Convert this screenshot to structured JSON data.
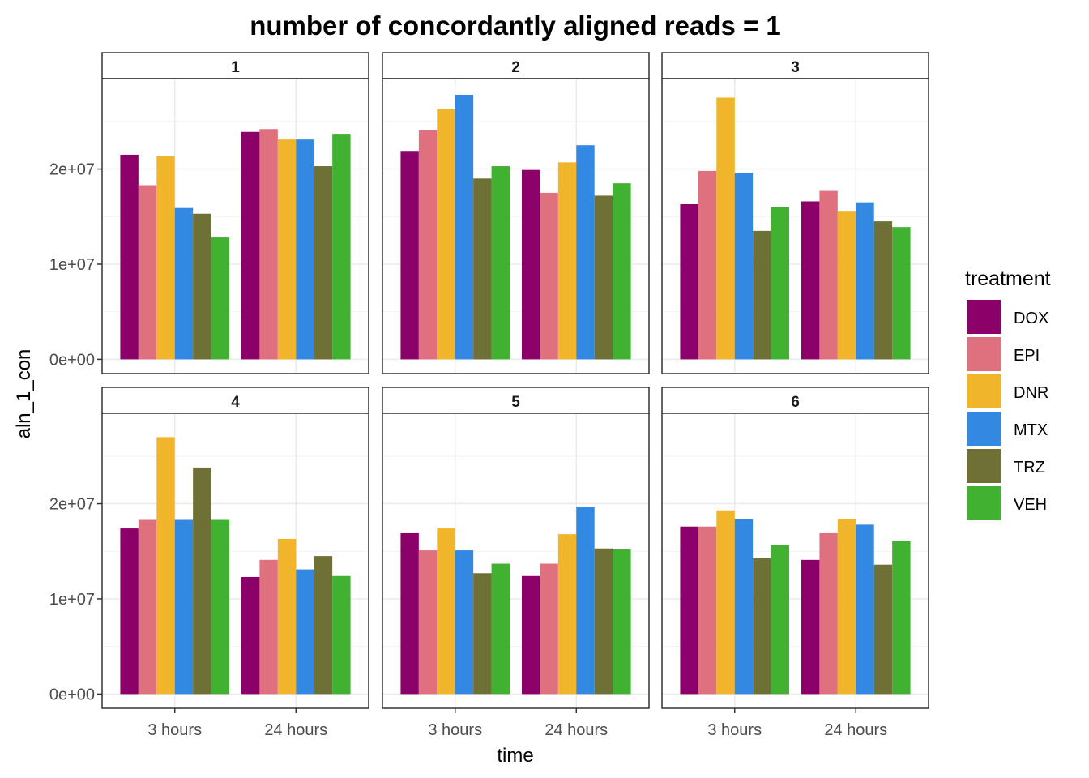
{
  "chart_data": {
    "type": "bar",
    "title": "number of concordantly aligned reads = 1",
    "xlabel": "time",
    "ylabel": "aln_1_con",
    "categories": [
      "3 hours",
      "24 hours"
    ],
    "ylim": [
      -1500000,
      29500000
    ],
    "yticks": [
      0,
      10000000,
      20000000
    ],
    "ytick_labels": [
      "0e+00",
      "1e+07",
      "2e+07"
    ],
    "grid": true,
    "legend": {
      "title": "treatment",
      "position": "right",
      "entries": [
        "DOX",
        "EPI",
        "DNR",
        "MTX",
        "TRZ",
        "VEH"
      ]
    },
    "series_colors": {
      "DOX": "#8b0069",
      "EPI": "#df717e",
      "DNR": "#f0b52b",
      "MTX": "#3388e2",
      "TRZ": "#6e7035",
      "VEH": "#41b131"
    },
    "facets": [
      {
        "label": "1",
        "series": [
          {
            "name": "DOX",
            "values": [
              21500000,
              23900000
            ]
          },
          {
            "name": "EPI",
            "values": [
              18300000,
              24200000
            ]
          },
          {
            "name": "DNR",
            "values": [
              21400000,
              23100000
            ]
          },
          {
            "name": "MTX",
            "values": [
              15900000,
              23100000
            ]
          },
          {
            "name": "TRZ",
            "values": [
              15300000,
              20300000
            ]
          },
          {
            "name": "VEH",
            "values": [
              12800000,
              23700000
            ]
          }
        ]
      },
      {
        "label": "2",
        "series": [
          {
            "name": "DOX",
            "values": [
              21900000,
              19900000
            ]
          },
          {
            "name": "EPI",
            "values": [
              24100000,
              17500000
            ]
          },
          {
            "name": "DNR",
            "values": [
              26300000,
              20700000
            ]
          },
          {
            "name": "MTX",
            "values": [
              27800000,
              22500000
            ]
          },
          {
            "name": "TRZ",
            "values": [
              19000000,
              17200000
            ]
          },
          {
            "name": "VEH",
            "values": [
              20300000,
              18500000
            ]
          }
        ]
      },
      {
        "label": "3",
        "series": [
          {
            "name": "DOX",
            "values": [
              16300000,
              16600000
            ]
          },
          {
            "name": "EPI",
            "values": [
              19800000,
              17700000
            ]
          },
          {
            "name": "DNR",
            "values": [
              27500000,
              15600000
            ]
          },
          {
            "name": "MTX",
            "values": [
              19600000,
              16500000
            ]
          },
          {
            "name": "TRZ",
            "values": [
              13500000,
              14500000
            ]
          },
          {
            "name": "VEH",
            "values": [
              16000000,
              13900000
            ]
          }
        ]
      },
      {
        "label": "4",
        "series": [
          {
            "name": "DOX",
            "values": [
              17400000,
              12300000
            ]
          },
          {
            "name": "EPI",
            "values": [
              18300000,
              14100000
            ]
          },
          {
            "name": "DNR",
            "values": [
              27000000,
              16300000
            ]
          },
          {
            "name": "MTX",
            "values": [
              18300000,
              13100000
            ]
          },
          {
            "name": "TRZ",
            "values": [
              23800000,
              14500000
            ]
          },
          {
            "name": "VEH",
            "values": [
              18300000,
              12400000
            ]
          }
        ]
      },
      {
        "label": "5",
        "series": [
          {
            "name": "DOX",
            "values": [
              16900000,
              12400000
            ]
          },
          {
            "name": "EPI",
            "values": [
              15100000,
              13700000
            ]
          },
          {
            "name": "DNR",
            "values": [
              17400000,
              16800000
            ]
          },
          {
            "name": "MTX",
            "values": [
              15100000,
              19700000
            ]
          },
          {
            "name": "TRZ",
            "values": [
              12700000,
              15300000
            ]
          },
          {
            "name": "VEH",
            "values": [
              13700000,
              15200000
            ]
          }
        ]
      },
      {
        "label": "6",
        "series": [
          {
            "name": "DOX",
            "values": [
              17600000,
              14100000
            ]
          },
          {
            "name": "EPI",
            "values": [
              17600000,
              16900000
            ]
          },
          {
            "name": "DNR",
            "values": [
              19300000,
              18400000
            ]
          },
          {
            "name": "MTX",
            "values": [
              18400000,
              17800000
            ]
          },
          {
            "name": "TRZ",
            "values": [
              14300000,
              13600000
            ]
          },
          {
            "name": "VEH",
            "values": [
              15700000,
              16100000
            ]
          }
        ]
      }
    ]
  }
}
